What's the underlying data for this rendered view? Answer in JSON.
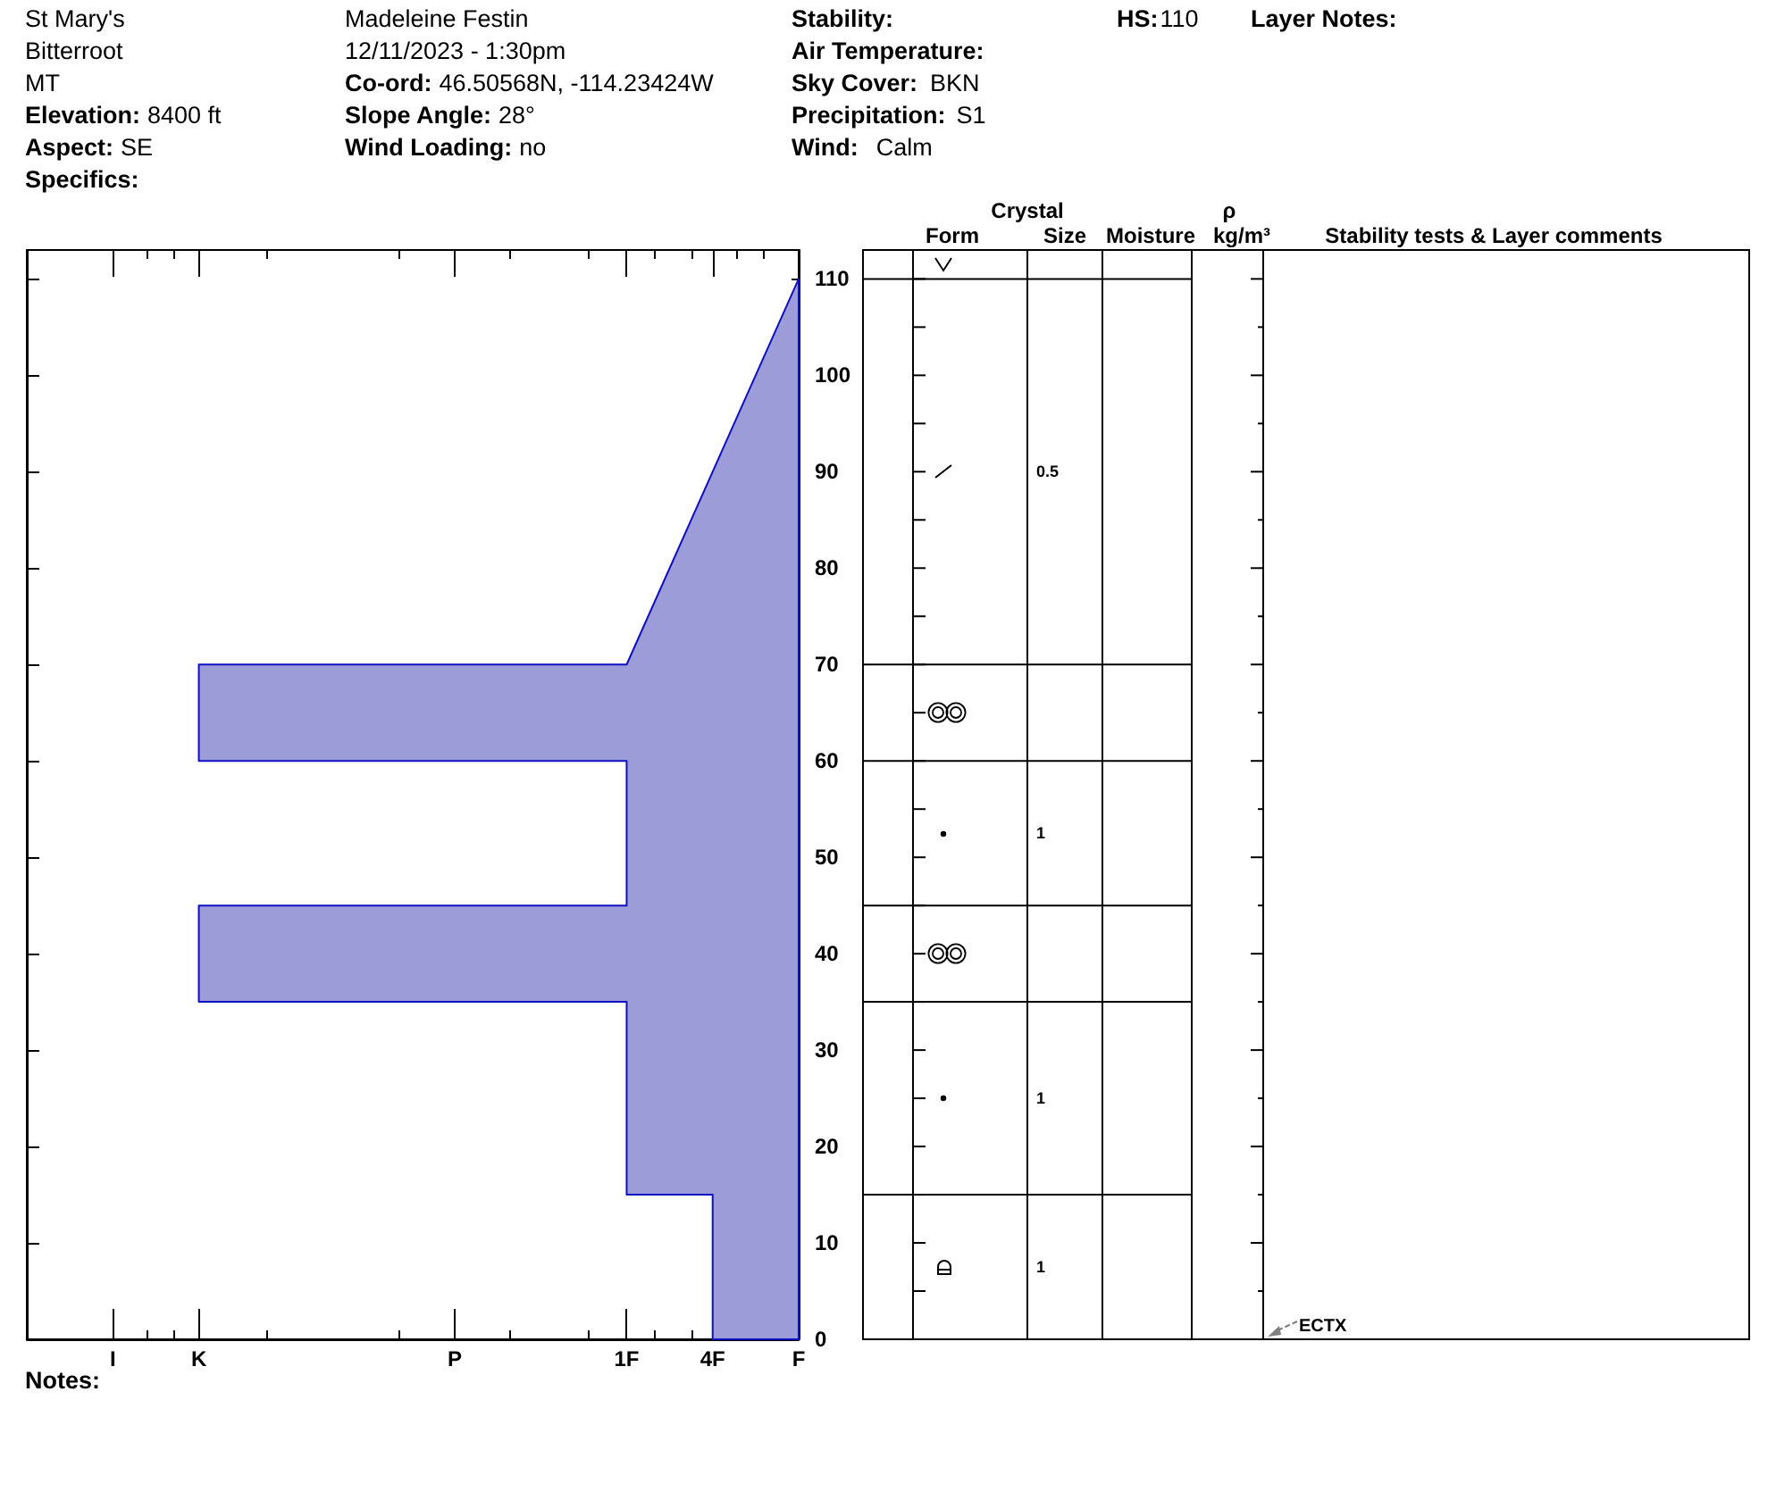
{
  "chart_data": [
    {
      "type": "other",
      "annotations": [
        "St Mary's",
        "Bitterroot",
        "MT",
        "Elevation:",
        "8400 ft",
        "Aspect:",
        "SE",
        "Specifics:",
        "Madeleine Festin",
        "12/11/2023 - 1:30pm",
        "Co-ord:",
        "46.50568N, -114.23424W",
        "Slope Angle:",
        "28°",
        "Wind Loading:",
        "no",
        "Stability:",
        "Air Temperature:",
        "Sky Cover:",
        "BKN",
        "Precipitation:",
        "S1",
        "Wind:",
        "Calm",
        "HS:",
        "110",
        "Layer Notes:"
      ]
    },
    {
      "type": "area",
      "categories": [
        "I",
        "K",
        "P",
        "1F",
        "4F",
        "F"
      ],
      "series": [
        {
          "x": [
            "F",
            "4F",
            "4F",
            "1F",
            "1F",
            "K",
            "K",
            "1F",
            "1F",
            "K",
            "K",
            "1F",
            "F"
          ],
          "values": [
            0,
            0,
            15,
            15,
            35,
            35,
            45,
            45,
            60,
            60,
            70,
            70,
            110
          ],
          "color": "#9c9cd8"
        }
      ],
      "ylim": [
        0,
        113
      ],
      "yticks": [
        0,
        10,
        20,
        30,
        40,
        50,
        60,
        70,
        80,
        90,
        100,
        110
      ],
      "annotations": [
        "Crystal",
        "Form",
        "Size",
        "Moisture",
        "ρ",
        "kg/m³",
        "Stability tests & Layer comments",
        "0.5",
        "1",
        "1",
        "1",
        "ECTX",
        "Notes:"
      ]
    }
  ]
}
